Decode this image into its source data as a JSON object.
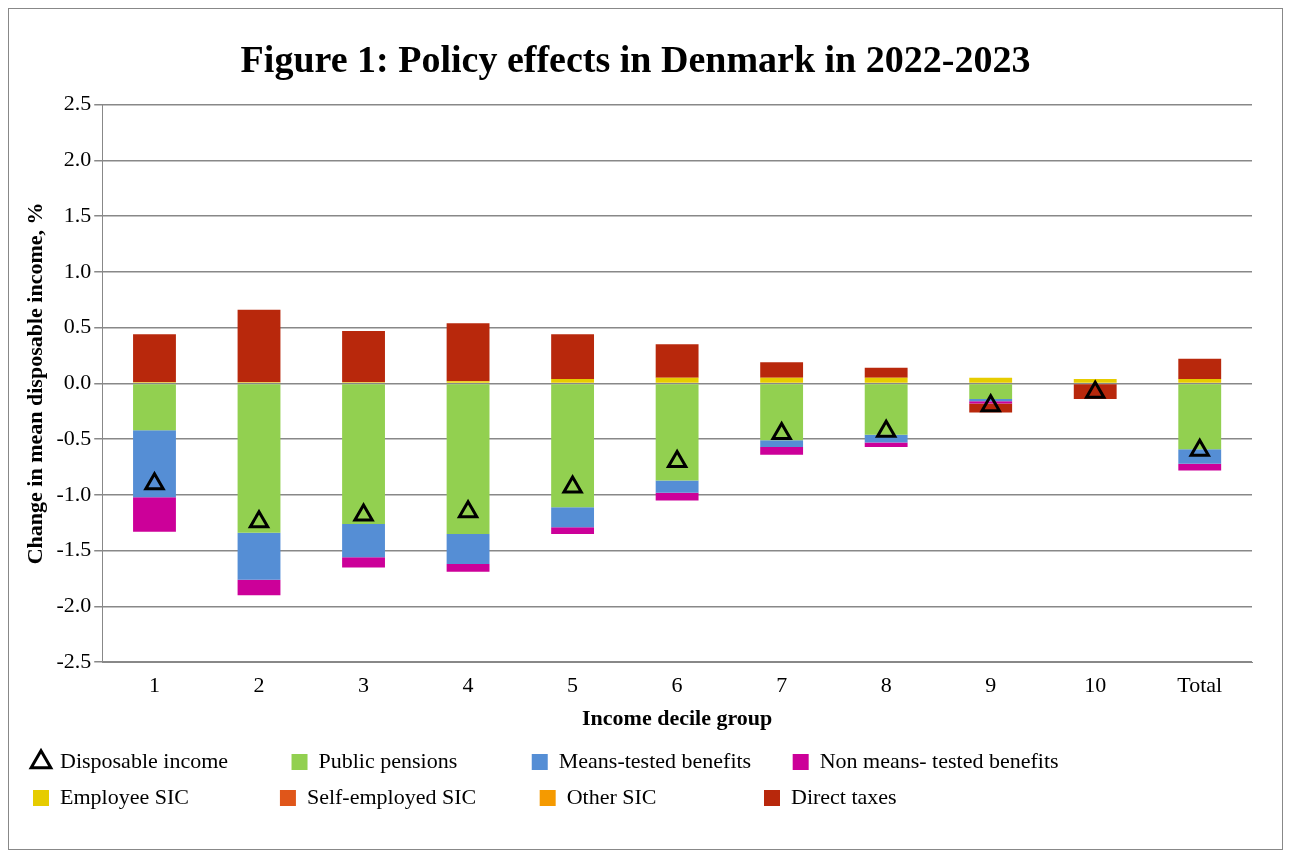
{
  "chart_data": {
    "type": "bar",
    "title": "Figure 1: Policy effects in Denmark in 2022-2023",
    "xlabel": "Income decile group",
    "ylabel": "Change in mean disposable income, %",
    "categories": [
      "1",
      "2",
      "3",
      "4",
      "5",
      "6",
      "7",
      "8",
      "9",
      "10",
      "Total"
    ],
    "stacked": true,
    "ylim": [
      -2.5,
      2.5
    ],
    "yticks": [
      {
        "value": -2.5,
        "label": "-2.5"
      },
      {
        "value": -2.0,
        "label": "-2.0"
      },
      {
        "value": -1.5,
        "label": "-1.5"
      },
      {
        "value": -1.0,
        "label": "-1.0"
      },
      {
        "value": -0.5,
        "label": "-0.5"
      },
      {
        "value": 0,
        "label": "0.0"
      },
      {
        "value": 0.5,
        "label": "0.5"
      },
      {
        "value": 1.0,
        "label": "1.0"
      },
      {
        "value": 1.5,
        "label": "1.5"
      },
      {
        "value": 2.0,
        "label": "2.0"
      },
      {
        "value": 2.5,
        "label": "2.5"
      }
    ],
    "grid": "y",
    "legend": "bottom",
    "series": [
      {
        "name": "Public pensions",
        "color": "#92d050",
        "values": [
          -0.42,
          -1.34,
          -1.26,
          -1.35,
          -1.11,
          -0.87,
          -0.51,
          -0.46,
          -0.14,
          0,
          -0.59
        ]
      },
      {
        "name": "Means-tested benefits",
        "color": "#558ed5",
        "values": [
          -0.6,
          -0.42,
          -0.3,
          -0.27,
          -0.18,
          -0.11,
          -0.06,
          -0.07,
          -0.02,
          0,
          -0.13
        ]
      },
      {
        "name": "Non means- tested benefits",
        "color": "#cc0099",
        "values": [
          -0.31,
          -0.14,
          -0.09,
          -0.07,
          -0.06,
          -0.07,
          -0.07,
          -0.04,
          -0.02,
          0,
          -0.06
        ]
      },
      {
        "name": "Employee SIC",
        "color": "#e6cc00",
        "values": [
          0.01,
          0.01,
          0.01,
          0.02,
          0.04,
          0.05,
          0.05,
          0.05,
          0.05,
          0.04,
          0.04
        ]
      },
      {
        "name": "Self-employed SIC",
        "color": "#e0561a",
        "values": [
          0,
          0,
          0,
          0,
          0,
          0,
          0,
          0,
          0,
          0,
          0
        ]
      },
      {
        "name": "Other SIC",
        "color": "#f59a00",
        "values": [
          0,
          0,
          0,
          0,
          0,
          0,
          0,
          0,
          0,
          0,
          0
        ]
      },
      {
        "name": "Direct taxes",
        "color": "#b8280c",
        "values": [
          0.43,
          0.65,
          0.46,
          0.52,
          0.4,
          0.3,
          0.14,
          0.09,
          -0.08,
          -0.14,
          0.18
        ]
      },
      {
        "name": "Disposable income",
        "type": "scatter",
        "marker": "triangle",
        "color": "#000000",
        "values": [
          -0.9,
          -1.24,
          -1.18,
          -1.15,
          -0.93,
          -0.7,
          -0.45,
          -0.43,
          -0.2,
          -0.08,
          -0.6
        ]
      }
    ]
  }
}
